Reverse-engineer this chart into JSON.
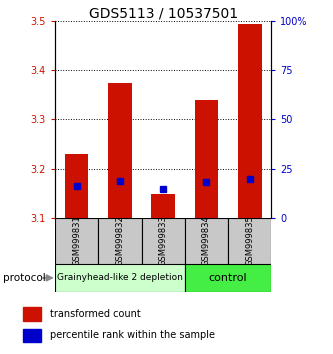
{
  "title": "GDS5113 / 10537501",
  "samples": [
    "GSM999831",
    "GSM999832",
    "GSM999833",
    "GSM999834",
    "GSM999835"
  ],
  "red_bar_bottom": [
    3.1,
    3.1,
    3.1,
    3.1,
    3.1
  ],
  "red_bar_top": [
    3.23,
    3.375,
    3.148,
    3.34,
    3.495
  ],
  "blue_marker_y": [
    3.165,
    3.175,
    3.158,
    3.172,
    3.178
  ],
  "ylim": [
    3.1,
    3.5
  ],
  "y_ticks": [
    3.1,
    3.2,
    3.3,
    3.4,
    3.5
  ],
  "y_right_ticks": [
    0,
    25,
    50,
    75,
    100
  ],
  "y_right_labels": [
    "0",
    "25",
    "50",
    "75",
    "100%"
  ],
  "red_color": "#cc1100",
  "blue_color": "#0000cc",
  "group1_indices": [
    0,
    1,
    2
  ],
  "group2_indices": [
    3,
    4
  ],
  "group1_label": "Grainyhead-like 2 depletion",
  "group2_label": "control",
  "group1_bg": "#ccffcc",
  "group2_bg": "#44ee44",
  "protocol_label": "protocol",
  "legend_red": "transformed count",
  "legend_blue": "percentile rank within the sample",
  "bar_width": 0.55,
  "title_fontsize": 10,
  "tick_fontsize": 7,
  "sample_fontsize": 6,
  "legend_fontsize": 7,
  "group_fontsize": 6.5
}
